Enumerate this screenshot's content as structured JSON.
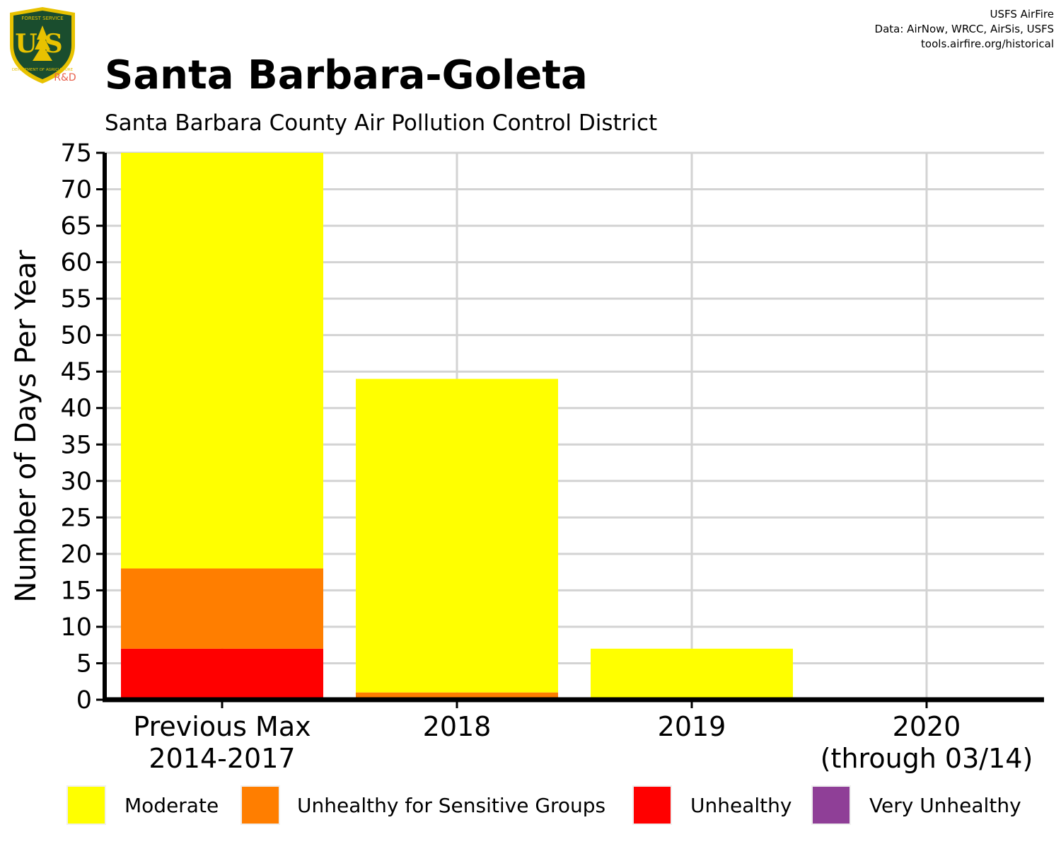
{
  "logo": {
    "top_text": "FOREST SERVICE",
    "letters": "US",
    "bottom_text": "DEPARTMENT OF AGRICULTURE",
    "badge": "R&D",
    "icon": "usfs-shield-icon",
    "colors": {
      "shield": "#1a4d2e",
      "gold": "#e8c200",
      "badge": "#e8604c"
    }
  },
  "credits": {
    "line1": "USFS AirFire",
    "line2": "Data: AirNow, WRCC, AirSis, USFS",
    "line3": "tools.airfire.org/historical"
  },
  "header": {
    "title": "Santa Barbara-Goleta",
    "subtitle": "Santa Barbara County Air Pollution Control District"
  },
  "chart_data": {
    "type": "bar",
    "stacked": true,
    "categories": [
      [
        "Previous Max",
        "2014-2017"
      ],
      [
        "2018"
      ],
      [
        "2019"
      ],
      [
        "2020",
        "(through 03/14)"
      ]
    ],
    "ylabel": "Number of Days Per Year",
    "xlabel": "",
    "ylim": [
      0,
      75
    ],
    "yticks": [
      0,
      5,
      10,
      15,
      20,
      25,
      30,
      35,
      40,
      45,
      50,
      55,
      60,
      65,
      70,
      75
    ],
    "grid": true,
    "legend_position": "bottom",
    "series": [
      {
        "name": "Unhealthy",
        "color": "#ff0000",
        "values": [
          7,
          0,
          0,
          0
        ]
      },
      {
        "name": "Unhealthy for Sensitive Groups",
        "color": "#ff7e00",
        "values": [
          11,
          1,
          0,
          0
        ]
      },
      {
        "name": "Moderate",
        "color": "#ffff00",
        "values": [
          57,
          43,
          7,
          0
        ]
      },
      {
        "name": "Very Unhealthy",
        "color": "#8f3f97",
        "values": [
          0,
          0,
          0,
          0
        ]
      }
    ]
  },
  "legend": {
    "items": [
      {
        "label": "Moderate",
        "color": "#ffff00"
      },
      {
        "label": "Unhealthy for Sensitive Groups",
        "color": "#ff7e00"
      },
      {
        "label": "Unhealthy",
        "color": "#ff0000"
      },
      {
        "label": "Very Unhealthy",
        "color": "#8f3f97"
      }
    ]
  }
}
